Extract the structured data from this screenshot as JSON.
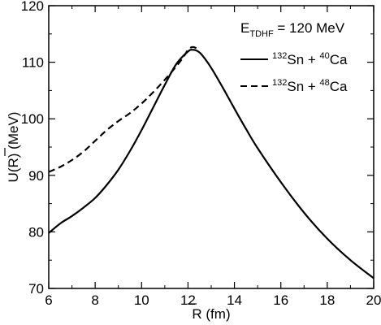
{
  "chart_data": {
    "type": "line",
    "title": "",
    "annotation": {
      "prefix": "E",
      "subscript": "TDHF",
      "suffix": " = 120 MeV"
    },
    "xlabel": {
      "main": "R",
      "suffix": " (fm)"
    },
    "ylabel": {
      "main": "U(R) (MeV)"
    },
    "xlim": [
      6,
      20
    ],
    "ylim": [
      70,
      120
    ],
    "xticks": [
      6,
      8,
      10,
      12,
      14,
      16,
      18,
      20
    ],
    "yticks": [
      70,
      80,
      90,
      100,
      110,
      120
    ],
    "grid": false,
    "legend_position": "top-right",
    "series": [
      {
        "name": "132Sn + 40Ca",
        "legend": {
          "sup1": "132",
          "mid": "Sn + ",
          "sup2": "40",
          "end": "Ca"
        },
        "style": "solid",
        "x": [
          6.0,
          6.5,
          7.0,
          7.5,
          8.0,
          8.5,
          9.0,
          9.5,
          10.0,
          10.5,
          11.0,
          11.5,
          12.0,
          12.2,
          12.4,
          12.6,
          13.0,
          13.5,
          14.0,
          14.5,
          15.0,
          16.0,
          17.0,
          18.0,
          19.0,
          20.0
        ],
        "y": [
          79.8,
          81.5,
          82.8,
          84.3,
          86.0,
          88.3,
          91.0,
          94.3,
          98.0,
          102.0,
          106.0,
          109.7,
          111.9,
          112.2,
          112.0,
          111.3,
          109.0,
          105.5,
          101.8,
          98.2,
          94.8,
          88.8,
          83.4,
          78.8,
          75.0,
          71.8
        ]
      },
      {
        "name": "132Sn + 48Ca",
        "legend": {
          "sup1": "132",
          "mid": "Sn + ",
          "sup2": "48",
          "end": "Ca"
        },
        "style": "dashed",
        "x": [
          6.0,
          6.5,
          7.0,
          7.5,
          8.0,
          8.5,
          9.0,
          9.5,
          10.0,
          10.5,
          11.0,
          11.5,
          11.8,
          12.0,
          12.2,
          12.4
        ],
        "y": [
          90.6,
          91.5,
          92.7,
          94.2,
          96.1,
          98.0,
          99.6,
          101.0,
          102.7,
          104.7,
          106.9,
          109.3,
          110.9,
          112.2,
          112.7,
          112.4
        ]
      }
    ]
  }
}
